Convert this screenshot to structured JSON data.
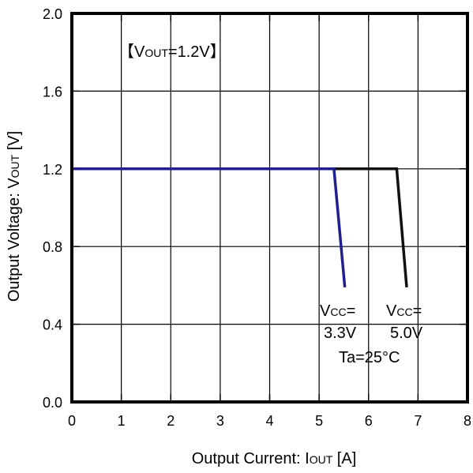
{
  "chart_data": {
    "type": "line",
    "title": "",
    "xlabel": {
      "main": "Output Current: I",
      "sub": "OUT",
      "unit": " [A]"
    },
    "ylabel": {
      "main": "Output Voltage: V",
      "sub": "OUT",
      "unit": " [V]"
    },
    "xlim": [
      0,
      8
    ],
    "ylim": [
      0.0,
      2.0
    ],
    "xticks": [
      "0",
      "1",
      "2",
      "3",
      "4",
      "5",
      "6",
      "7",
      "8"
    ],
    "yticks": [
      "0.0",
      "0.4",
      "0.8",
      "1.2",
      "1.6",
      "2.0"
    ],
    "grid": true,
    "series": [
      {
        "color": "#1f1f8f",
        "x": [
          0,
          5.3,
          5.52
        ],
        "y": [
          1.2,
          1.2,
          0.59
        ]
      },
      {
        "color": "#111111",
        "x": [
          0,
          6.57,
          6.77
        ],
        "y": [
          1.2,
          1.2,
          0.59
        ]
      }
    ],
    "annotations": {
      "vout_box": {
        "open": "【",
        "main": "V",
        "sub": "OUT",
        "rest": "=1.2V",
        "close": "】"
      },
      "vcc_33": {
        "main": "V",
        "sub": "CC",
        "rest": "=",
        "value": "3.3V"
      },
      "vcc_50": {
        "main": "V",
        "sub": "CC",
        "rest": "=",
        "value": "5.0V"
      },
      "ta": "Ta=25°C"
    }
  }
}
